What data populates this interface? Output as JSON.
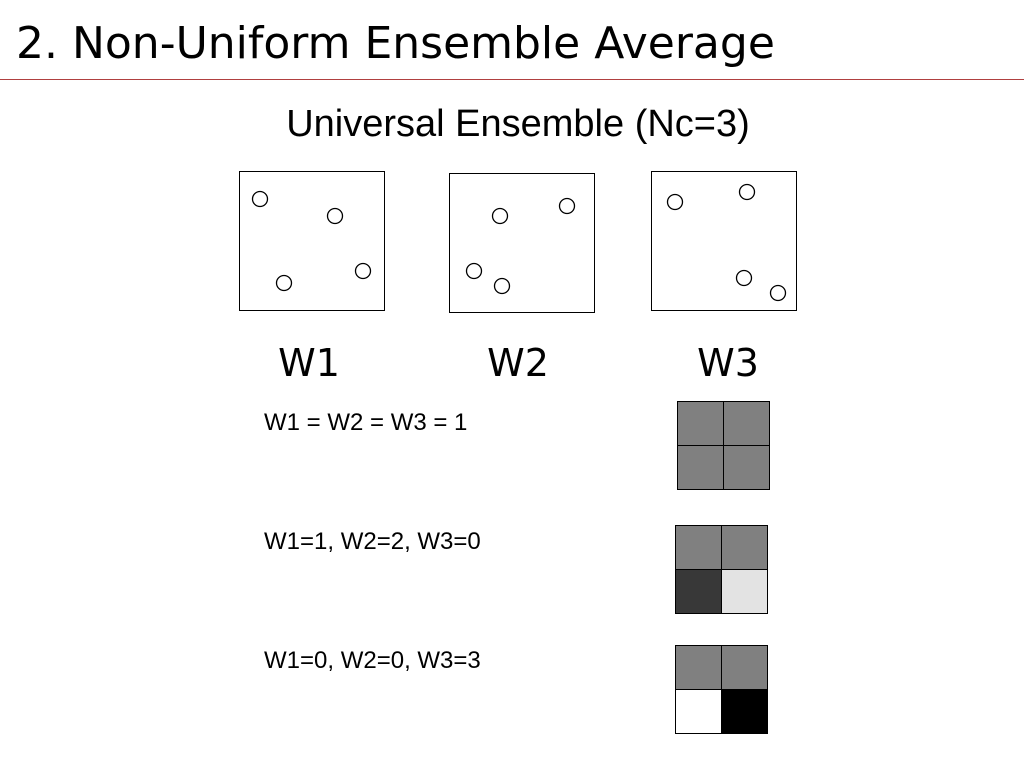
{
  "title": "2. Non-Uniform Ensemble Average",
  "subtitle": "Universal Ensemble (Nc=3)",
  "colors": {
    "title_rule": "#b04040"
  },
  "ensembles": [
    {
      "label": "W1"
    },
    {
      "label": "W2"
    },
    {
      "label": "W3"
    }
  ],
  "weight_cases": [
    {
      "label": "W1 = W2 = W3 = 1",
      "cells": [
        "#808080",
        "#808080",
        "#808080",
        "#808080"
      ]
    },
    {
      "label": "W1=1, W2=2, W3=0",
      "cells": [
        "#808080",
        "#808080",
        "#383838",
        "#e3e3e3"
      ]
    },
    {
      "label": "W1=0, W2=0, W3=3",
      "cells": [
        "#808080",
        "#808080",
        "#ffffff",
        "#000000"
      ]
    }
  ]
}
